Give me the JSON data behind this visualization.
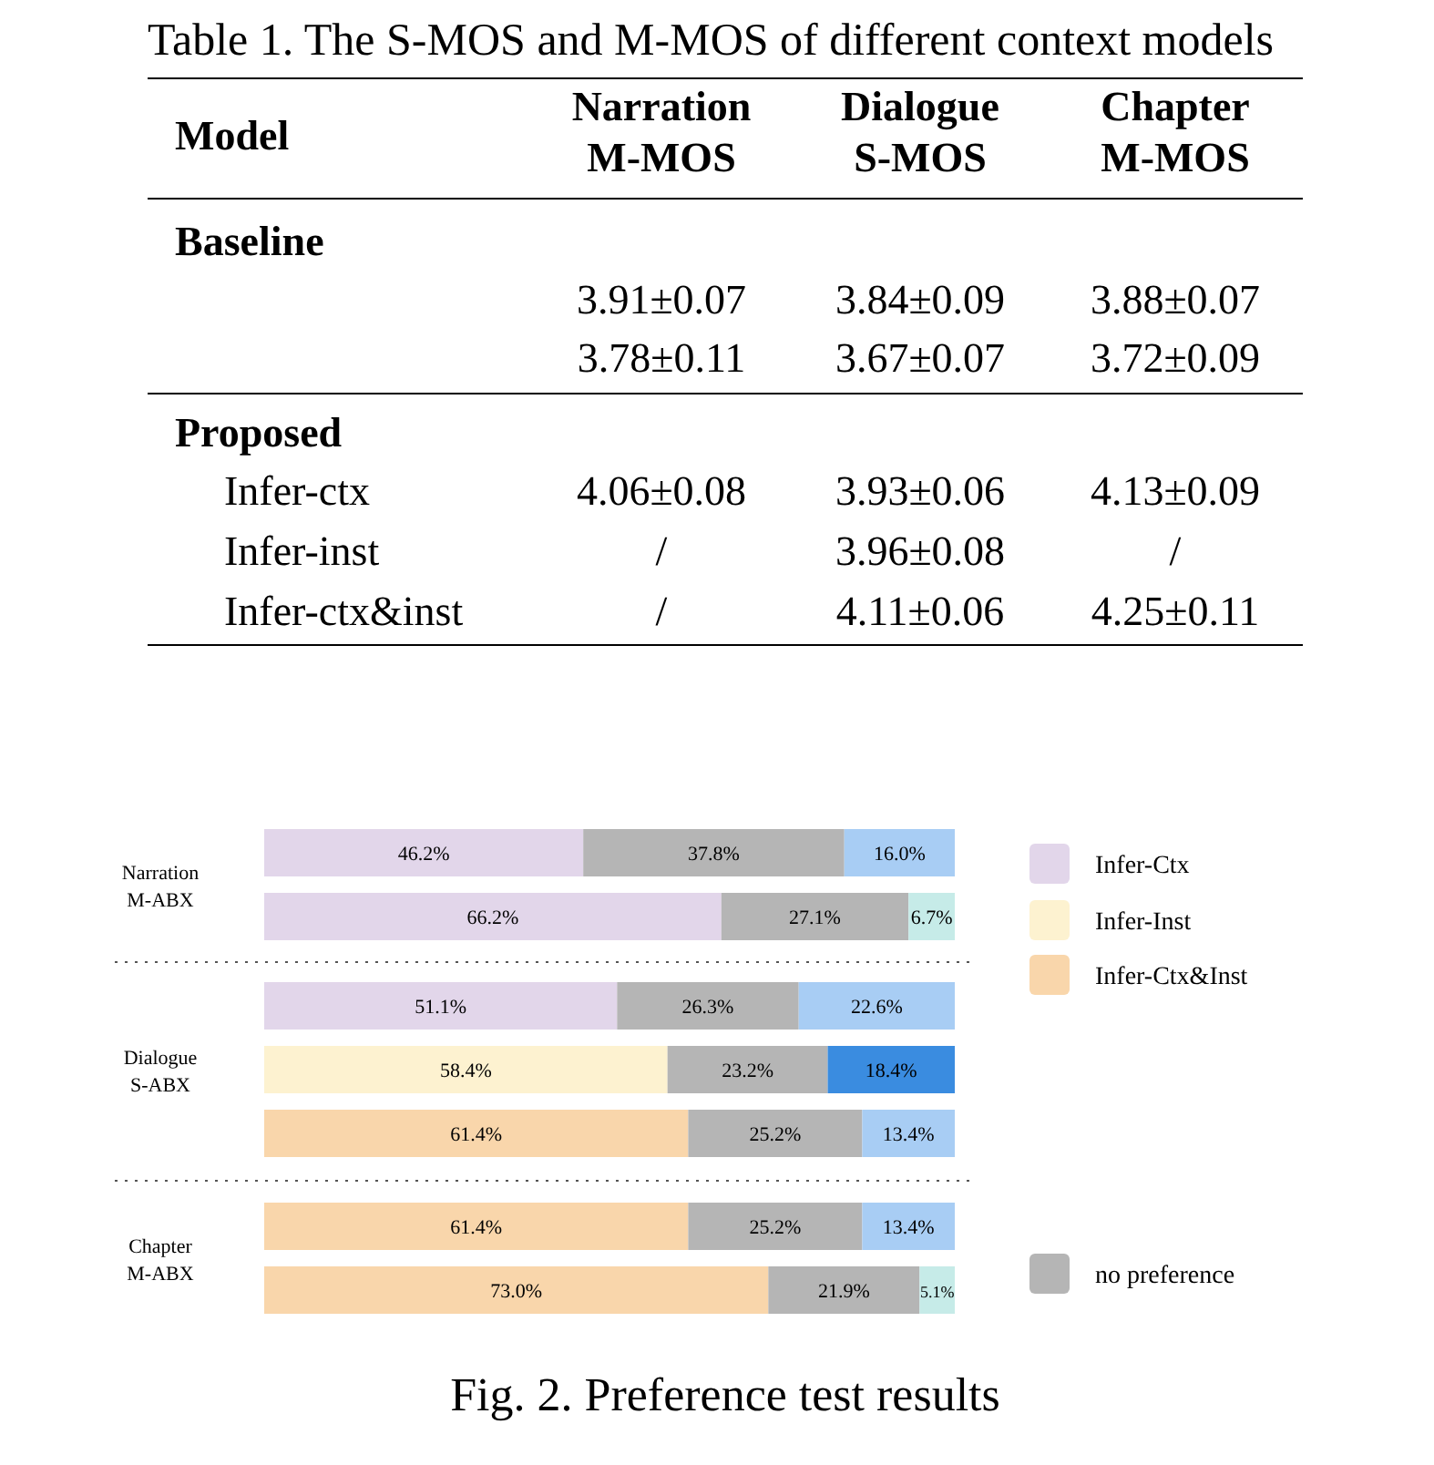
{
  "chart_data": [
    {
      "type": "other",
      "title": "Table 1. The S-MOS and M-MOS of different context models",
      "categories": [
        "Model",
        "Narration M-MOS",
        "Dialogue S-MOS",
        "Chapter M-MOS"
      ],
      "y_categories": [
        "Baseline",
        null,
        null,
        "Proposed",
        "Infer-ctx",
        "Infer-inst",
        "Infer-ctx&inst"
      ],
      "cell_labels": [
        [
          null,
          null,
          null
        ],
        [
          "3.91±0.07",
          "3.84±0.09",
          "3.88±0.07"
        ],
        [
          "3.78±0.11",
          "3.67±0.07",
          "3.72±0.09"
        ],
        [
          null,
          null,
          null
        ],
        [
          "4.06±0.08",
          "3.93±0.06",
          "4.13±0.09"
        ],
        [
          "/",
          "3.96±0.08",
          "/"
        ],
        [
          "/",
          "4.11±0.06",
          "4.25±0.11"
        ]
      ]
    },
    {
      "type": "bar",
      "orientation": "horizontal",
      "stacked": true,
      "title": "Fig. 2. Preference test results",
      "legend": "right",
      "categories": [
        null,
        null,
        null,
        null,
        null,
        null,
        null
      ],
      "annotations": [
        "Narration M-ABX",
        "Dialogue S-ABX",
        "Chapter M-ABX"
      ],
      "series": [
        {
          "name": "Infer-Ctx",
          "color": "#e2d6ea",
          "values": [
            46.2,
            66.2,
            51.1,
            null,
            null,
            null,
            null
          ],
          "value_labels": [
            "46.2%",
            "66.2%",
            "51.1%",
            null,
            null,
            null,
            null
          ]
        },
        {
          "name": "Infer-Inst",
          "color": "#fdf2d0",
          "values": [
            null,
            null,
            null,
            58.4,
            null,
            null,
            null
          ],
          "value_labels": [
            null,
            null,
            null,
            "58.4%",
            null,
            null,
            null
          ]
        },
        {
          "name": "Infer-Ctx&Inst",
          "color": "#f9d6ab",
          "values": [
            null,
            null,
            null,
            null,
            61.4,
            61.4,
            73.0
          ],
          "value_labels": [
            null,
            null,
            null,
            null,
            "61.4%",
            "61.4%",
            "73.0%"
          ]
        },
        {
          "name": "no preference",
          "color": "#b5b5b5",
          "values": [
            37.8,
            27.1,
            26.3,
            23.2,
            25.2,
            25.2,
            21.9
          ],
          "value_labels": [
            "37.8%",
            "27.1%",
            "26.3%",
            "23.2%",
            "25.2%",
            "25.2%",
            "21.9%"
          ]
        },
        {
          "color": "#a8cdf4",
          "values": [
            16.0,
            null,
            22.6,
            null,
            13.4,
            13.4,
            null
          ],
          "value_labels": [
            "16.0%",
            null,
            "22.6%",
            null,
            "13.4%",
            "13.4%",
            null
          ]
        },
        {
          "color": "#3a8ce0",
          "values": [
            null,
            null,
            null,
            18.4,
            null,
            null,
            null
          ],
          "value_labels": [
            null,
            null,
            null,
            "18.4%",
            null,
            null,
            null
          ]
        },
        {
          "color": "#c6ebe8",
          "values": [
            null,
            6.7,
            null,
            null,
            null,
            null,
            5.1
          ],
          "value_labels": [
            null,
            "6.7%",
            null,
            null,
            null,
            null,
            "5.1%"
          ]
        }
      ]
    }
  ]
}
